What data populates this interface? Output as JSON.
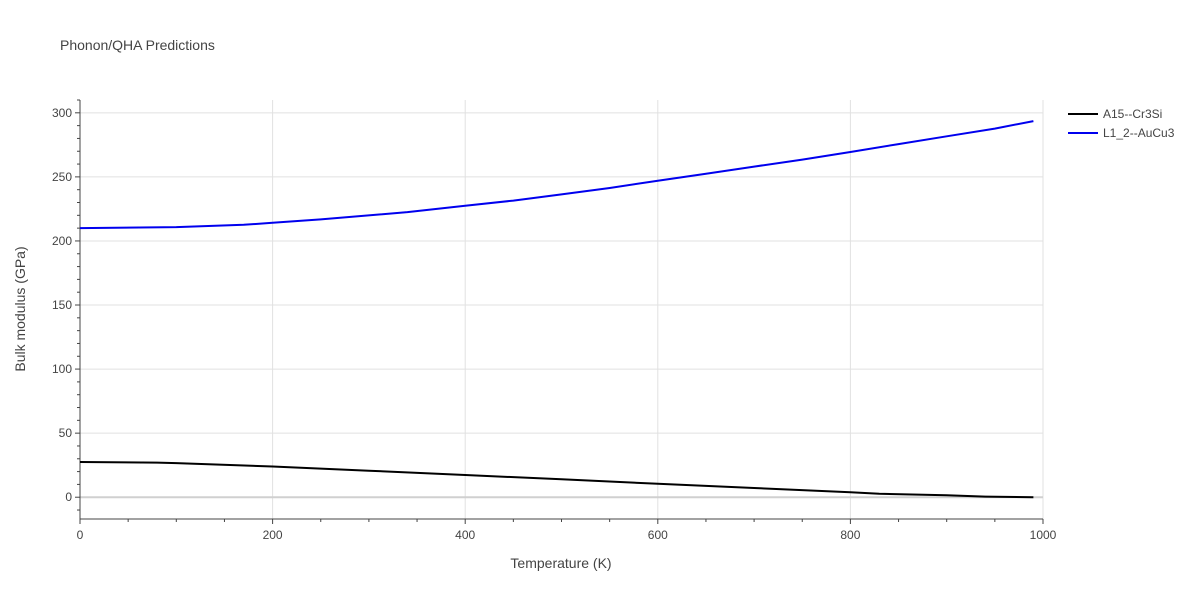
{
  "chart_data": {
    "type": "line",
    "title": "Phonon/QHA Predictions",
    "xlabel": "Temperature (K)",
    "ylabel": "Bulk modulus (GPa)",
    "xlim": [
      0,
      1000
    ],
    "ylim": [
      -17,
      310
    ],
    "xticks": [
      0,
      200,
      400,
      600,
      800,
      1000
    ],
    "yticks": [
      0,
      50,
      100,
      150,
      200,
      250,
      300
    ],
    "grid": true,
    "legend_position": "top-right",
    "series": [
      {
        "name": "A15--Cr3Si",
        "color": "#000000",
        "x": [
          0,
          80,
          100,
          200,
          300,
          400,
          500,
          600,
          700,
          800,
          830,
          900,
          940,
          990
        ],
        "y": [
          27.5,
          27.0,
          26.6,
          24.0,
          20.7,
          17.3,
          14.0,
          10.5,
          7.2,
          3.8,
          2.7,
          1.5,
          0.5,
          0.0
        ]
      },
      {
        "name": "L1_2--AuCu3",
        "color": "#0000ee",
        "x": [
          0,
          100,
          170,
          200,
          250,
          340,
          400,
          450,
          500,
          550,
          600,
          650,
          700,
          750,
          800,
          850,
          900,
          950,
          990
        ],
        "y": [
          210.0,
          210.8,
          212.6,
          214.2,
          216.8,
          222.5,
          227.5,
          231.5,
          236.3,
          241.3,
          247.0,
          252.5,
          258.0,
          263.5,
          269.4,
          275.6,
          281.7,
          287.7,
          293.5
        ]
      }
    ]
  }
}
